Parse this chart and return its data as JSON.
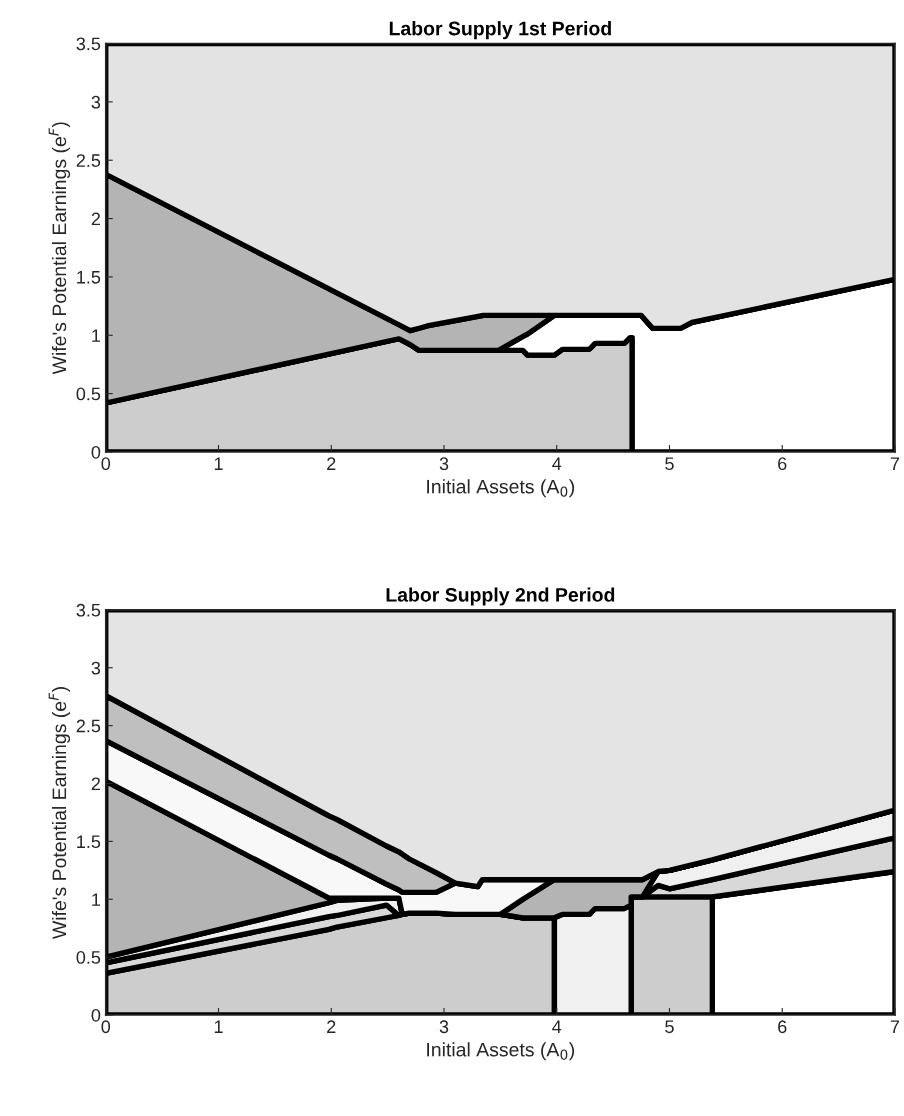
{
  "chart_data": [
    {
      "type": "area",
      "stacked": true,
      "title": "Labor Supply 1st Period",
      "xlabel": "Initial Assets (A$_{0}$)",
      "ylabel": "Wife's Potential Earnings (e$^{F}$)",
      "xlim": [
        0,
        7
      ],
      "ylim": [
        0,
        3.5
      ],
      "xticks": [
        0,
        1,
        2,
        3,
        4,
        5,
        6,
        7
      ],
      "yticks": [
        0,
        0.5,
        1,
        1.5,
        2,
        2.5,
        3,
        3.5
      ],
      "x": [
        0,
        2.6,
        2.7,
        2.78,
        2.85,
        3.35,
        3.48,
        3.7,
        3.74,
        3.98,
        4.05,
        4.29,
        4.34,
        4.6,
        4.65,
        4.67,
        4.67,
        4.75,
        4.85,
        5.1,
        5.2,
        7
      ],
      "series": [
        {
          "color": "#cdcdcd",
          "values": [
            0.42,
            0.97,
            0.92,
            0.87,
            0.87,
            0.87,
            0.87,
            0.87,
            0.83,
            0.83,
            0.88,
            0.88,
            0.93,
            0.93,
            0.98,
            0.98,
            0,
            0,
            0,
            0,
            0,
            0
          ]
        },
        {
          "color": "#ffffff",
          "values": [
            0,
            0,
            0,
            0,
            0,
            0,
            0,
            0.12,
            0.18,
            0.34,
            0.29,
            0.29,
            0.24,
            0.24,
            0.19,
            0.19,
            1.17,
            1.17,
            1.06,
            1.06,
            1.11,
            1.48
          ]
        },
        {
          "color": "#b4b4b4",
          "values": [
            1.96,
            0.12,
            0.12,
            0.19,
            0.21,
            0.3,
            0.3,
            0.18,
            0.16,
            0,
            0,
            0,
            0,
            0,
            0,
            0,
            0,
            0,
            0,
            0,
            0,
            0
          ]
        },
        {
          "color": "#e3e3e3",
          "values": [
            1.12,
            2.41,
            2.46,
            2.44,
            2.42,
            2.33,
            2.33,
            2.33,
            2.33,
            2.33,
            2.33,
            2.33,
            2.33,
            2.33,
            2.33,
            2.33,
            2.33,
            2.33,
            2.44,
            2.44,
            2.39,
            2.02
          ]
        }
      ]
    },
    {
      "type": "area",
      "stacked": true,
      "title": "Labor Supply 2nd Period",
      "xlabel": "Initial Assets (A$_{0}$)",
      "ylabel": "Wife's Potential Earnings (e$^{F}$)",
      "xlim": [
        0,
        7
      ],
      "ylim": [
        0,
        3.5
      ],
      "xticks": [
        0,
        1,
        2,
        3,
        4,
        5,
        6,
        7
      ],
      "yticks": [
        0,
        0.5,
        1,
        1.5,
        2,
        2.5,
        3,
        3.5
      ],
      "x": [
        0,
        1.98,
        2.05,
        2.49,
        2.6,
        2.63,
        2.69,
        2.93,
        3.1,
        3.3,
        3.34,
        3.5,
        3.7,
        3.98,
        3.98,
        4.05,
        4.29,
        4.34,
        4.6,
        4.66,
        4.66,
        4.76,
        4.9,
        5.0,
        5.38,
        5.38,
        7
      ],
      "series": [
        {
          "color": "#ffffff",
          "values": [
            null,
            null,
            null,
            null,
            null,
            null,
            null,
            null,
            null,
            null,
            null,
            null,
            null,
            null,
            null,
            null,
            null,
            null,
            null,
            null,
            null,
            null,
            null,
            null,
            null,
            1.02,
            1.24
          ]
        },
        {
          "color": "#cdcdcd",
          "values": [
            0.36,
            0.74,
            0.76,
            0.84,
            0.86,
            0.87,
            0.88,
            0.88,
            0.87,
            0.87,
            0.87,
            0.87,
            0.84,
            0.84,
            0,
            0,
            0,
            0,
            0,
            0,
            1.02,
            1.02,
            1.02,
            1.02,
            1.02,
            0,
            0
          ]
        },
        {
          "color": "#d8d8d8",
          "values": [
            0.09,
            0.11,
            0.1,
            0.11,
            0,
            0,
            0,
            0,
            0,
            0,
            0,
            0,
            0,
            0,
            0,
            0,
            0,
            0,
            0,
            0,
            0,
            0,
            0.1,
            0.07,
            0.15,
            0.15,
            0.29
          ]
        },
        {
          "color": "#f0f0f0",
          "values": [
            0.05,
            0.12,
            0.13,
            0.06,
            0.15,
            0,
            0,
            0,
            0,
            0,
            0,
            0,
            0,
            0,
            0.84,
            0.87,
            0.87,
            0.92,
            0.92,
            0.95,
            0,
            0,
            0.12,
            0.16,
            0.17,
            0.17,
            0.24
          ]
        },
        {
          "color": "#b4b4b4",
          "values": [
            1.52,
            0.04,
            0.02,
            0,
            0,
            0,
            0,
            0,
            0,
            0,
            0,
            0,
            0.16,
            0.33,
            0.33,
            0.3,
            0.3,
            0.25,
            0.25,
            0.22,
            0.15,
            0.15,
            0,
            0,
            0,
            0,
            0
          ]
        },
        {
          "color": "#f8f8f8",
          "values": [
            0.35,
            0.37,
            0.34,
            0.12,
            0.07,
            0.19,
            0.18,
            0.18,
            0.27,
            0.24,
            0.3,
            0.3,
            0.17,
            0,
            0,
            0,
            0,
            0,
            0,
            0,
            0,
            0,
            0,
            0,
            0,
            0,
            0
          ]
        },
        {
          "color": "#bfbfbf",
          "values": [
            0.39,
            0.34,
            0.34,
            0.33,
            0.33,
            0.33,
            0.29,
            0.17,
            0,
            0,
            0,
            0,
            0,
            0,
            0,
            0,
            0,
            0,
            0,
            0,
            0,
            0,
            0,
            0,
            0,
            0,
            0
          ]
        },
        {
          "color": "#e4e4e4",
          "values": [
            0.74,
            1.78,
            1.81,
            2.04,
            2.09,
            2.11,
            2.15,
            2.27,
            2.36,
            2.39,
            2.33,
            2.33,
            2.33,
            2.33,
            2.33,
            2.33,
            2.33,
            2.33,
            2.33,
            2.33,
            2.33,
            2.33,
            2.26,
            2.25,
            2.16,
            2.16,
            1.73
          ]
        }
      ]
    }
  ]
}
